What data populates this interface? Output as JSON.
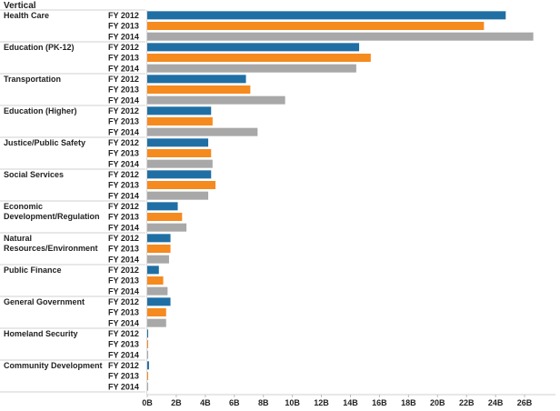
{
  "chart_data": {
    "type": "bar",
    "orientation": "horizontal",
    "header": "Vertical",
    "categories": [
      {
        "name": "Health Care",
        "label_lines": [
          "Health Care"
        ]
      },
      {
        "name": "Education (PK-12)",
        "label_lines": [
          "Education (PK-12)"
        ]
      },
      {
        "name": "Transportation",
        "label_lines": [
          "Transportation"
        ]
      },
      {
        "name": "Education (Higher)",
        "label_lines": [
          "Education (Higher)"
        ]
      },
      {
        "name": "Justice/Public Safety",
        "label_lines": [
          "Justice/Public Safety"
        ]
      },
      {
        "name": "Social Services",
        "label_lines": [
          "Social Services"
        ]
      },
      {
        "name": "Economic Development/Regulation",
        "label_lines": [
          "Economic",
          "Development/Regulation"
        ]
      },
      {
        "name": "Natural Resources/Environment",
        "label_lines": [
          "Natural",
          "Resources/Environment"
        ]
      },
      {
        "name": "Public Finance",
        "label_lines": [
          "Public Finance"
        ]
      },
      {
        "name": "General Government",
        "label_lines": [
          "General Government"
        ]
      },
      {
        "name": "Homeland Security",
        "label_lines": [
          "Homeland Security"
        ]
      },
      {
        "name": "Community Development",
        "label_lines": [
          "Community Development"
        ]
      }
    ],
    "series": [
      {
        "name": "FY 2012",
        "color": "#1f6fa5",
        "values": [
          24.7,
          14.6,
          6.8,
          4.4,
          4.2,
          4.4,
          2.1,
          1.6,
          0.8,
          1.6,
          0.05,
          0.12
        ]
      },
      {
        "name": "FY 2013",
        "color": "#f58a1f",
        "values": [
          23.2,
          15.4,
          7.1,
          4.5,
          4.4,
          4.7,
          2.4,
          1.6,
          1.1,
          1.3,
          0.03,
          0.03
        ]
      },
      {
        "name": "FY 2014",
        "color": "#a8a8a8",
        "values": [
          26.6,
          14.4,
          9.5,
          7.6,
          4.5,
          4.2,
          2.7,
          1.5,
          1.4,
          1.3,
          0.02,
          0.02
        ]
      }
    ],
    "xaxis": {
      "ticks": [
        0,
        2,
        4,
        6,
        8,
        10,
        12,
        14,
        16,
        18,
        20,
        22,
        24,
        26
      ],
      "tick_labels": [
        "0B",
        "2B",
        "4B",
        "6B",
        "8B",
        "10B",
        "12B",
        "14B",
        "16B",
        "18B",
        "20B",
        "22B",
        "24B",
        "26B"
      ],
      "range": [
        0,
        27.5
      ]
    },
    "grid": false,
    "legend": "none"
  }
}
